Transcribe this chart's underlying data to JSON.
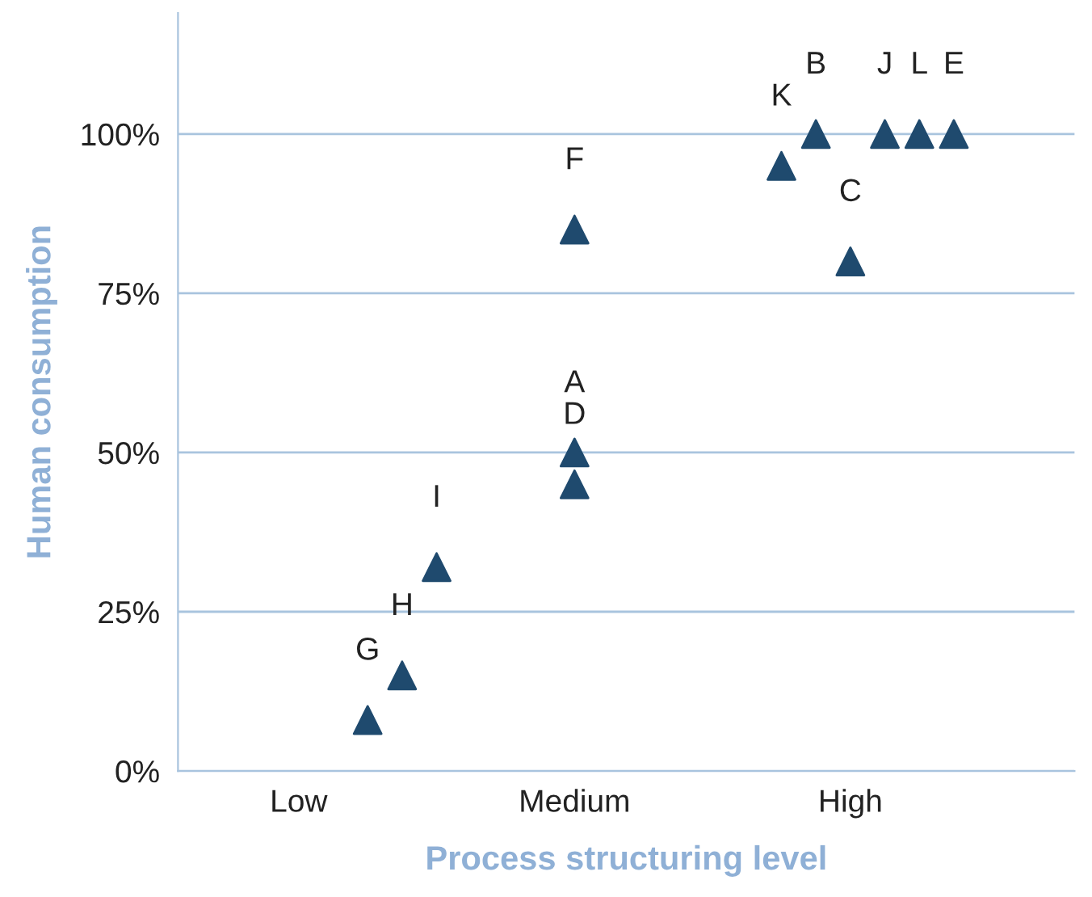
{
  "chart_data": {
    "type": "scatter",
    "xlabel": "Process structuring level",
    "ylabel": "Human consumption",
    "marker": "triangle",
    "grid": "y",
    "categories": [
      null,
      null,
      null,
      "Low",
      null,
      null,
      null,
      null,
      null,
      null,
      null,
      "Medium",
      null,
      null,
      null,
      null,
      null,
      null,
      null,
      "High",
      null,
      null,
      null,
      null,
      null,
      null
    ],
    "ylim": [
      0,
      119
    ],
    "yticks": [
      {
        "value": 0,
        "label": "0%"
      },
      {
        "value": 25,
        "label": "25%"
      },
      {
        "value": 50,
        "label": "50%"
      },
      {
        "value": 75,
        "label": "75%"
      },
      {
        "value": 100,
        "label": "100%"
      }
    ],
    "series": [
      {
        "color": "#1f4a6e",
        "values": [
          null,
          null,
          null,
          null,
          null,
          8,
          15,
          32,
          null,
          null,
          null,
          50,
          null,
          null,
          null,
          null,
          null,
          95,
          100,
          80,
          100,
          100,
          100,
          null,
          null,
          null
        ],
        "value_labels": [
          null,
          null,
          null,
          null,
          null,
          "G",
          "H",
          "I",
          null,
          null,
          null,
          "A",
          null,
          null,
          null,
          null,
          null,
          "K",
          "B",
          "C",
          "J",
          "L",
          "E",
          null,
          null,
          null
        ]
      },
      {
        "color": "#1f4a6e",
        "values": [
          null,
          null,
          null,
          null,
          null,
          null,
          null,
          null,
          null,
          null,
          null,
          45,
          null,
          null,
          null,
          null,
          null,
          null,
          null,
          null,
          null,
          null,
          null,
          null,
          null,
          null
        ],
        "value_labels": [
          null,
          null,
          null,
          null,
          null,
          null,
          null,
          null,
          null,
          null,
          null,
          "D",
          null,
          null,
          null,
          null,
          null,
          null,
          null,
          null,
          null,
          null,
          null,
          null,
          null,
          null
        ]
      },
      {
        "color": "#1f4a6e",
        "values": [
          null,
          null,
          null,
          null,
          null,
          null,
          null,
          null,
          null,
          null,
          null,
          85,
          null,
          null,
          null,
          null,
          null,
          null,
          null,
          null,
          null,
          null,
          null,
          null,
          null,
          null
        ],
        "value_labels": [
          null,
          null,
          null,
          null,
          null,
          null,
          null,
          null,
          null,
          null,
          null,
          "F",
          null,
          null,
          null,
          null,
          null,
          null,
          null,
          null,
          null,
          null,
          null,
          null,
          null,
          null
        ]
      }
    ]
  }
}
